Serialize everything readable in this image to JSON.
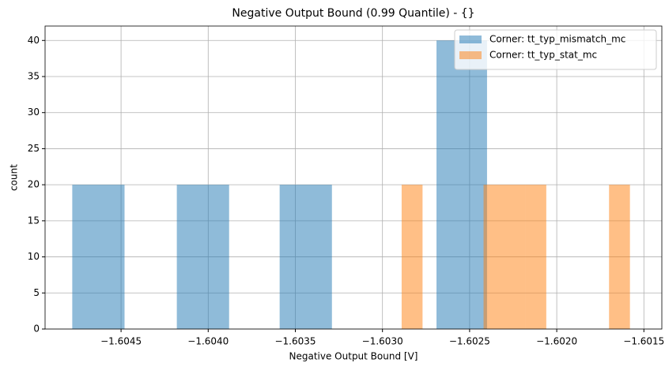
{
  "chart_data": {
    "type": "histogram",
    "title": "Negative Output Bound (0.99 Quantile) - {}",
    "xlabel": "Negative Output Bound [V]",
    "ylabel": "count",
    "series": [
      {
        "name": "Corner: tt_typ_mismatch_mc",
        "color": "#1f77b4",
        "alpha": 0.5,
        "bins": [
          -1.60478,
          -1.60448,
          -1.60418,
          -1.60388,
          -1.60359,
          -1.60329,
          -1.60299,
          -1.60269,
          -1.6024
        ],
        "values": [
          20,
          0,
          20,
          0,
          20,
          0,
          0,
          40
        ]
      },
      {
        "name": "Corner: tt_typ_stat_mc",
        "color": "#ff7f0e",
        "alpha": 0.5,
        "bins": [
          -1.60289,
          -1.60277,
          -1.60265,
          -1.60253,
          -1.60242,
          -1.6023,
          -1.60218,
          -1.60206,
          -1.60194,
          -1.60182,
          -1.6017,
          -1.60158
        ],
        "values": [
          20,
          0,
          0,
          0,
          20,
          20,
          20,
          0,
          0,
          0,
          20
        ]
      }
    ],
    "xlim": [
      -1.604936,
      -1.601397
    ],
    "ylim": [
      0,
      42
    ],
    "xticks": [
      {
        "value": -1.6045,
        "label": "−1.6045"
      },
      {
        "value": -1.604,
        "label": "−1.6040"
      },
      {
        "value": -1.6035,
        "label": "−1.6035"
      },
      {
        "value": -1.603,
        "label": "−1.6030"
      },
      {
        "value": -1.6025,
        "label": "−1.6025"
      },
      {
        "value": -1.602,
        "label": "−1.6020"
      },
      {
        "value": -1.6015,
        "label": "−1.6015"
      }
    ],
    "yticks": [
      0,
      5,
      10,
      15,
      20,
      25,
      30,
      35,
      40
    ],
    "grid": true,
    "legend": "upper right"
  }
}
